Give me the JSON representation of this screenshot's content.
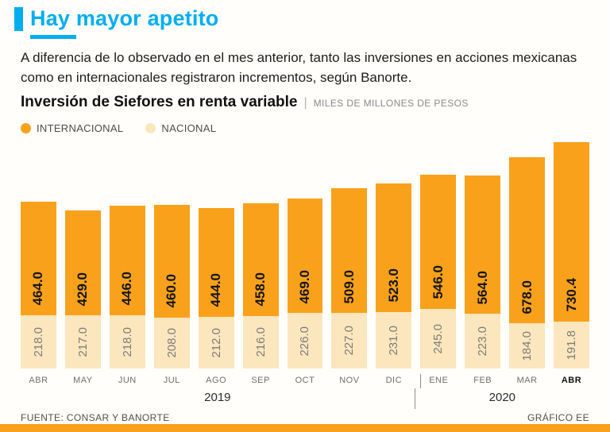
{
  "header": {
    "title": "Hay mayor apetito",
    "subtitle": "A diferencia de lo observado en el mes anterior, tanto las inversiones en acciones mexicanas como en internacionales registraron incrementos, según Banorte."
  },
  "chart": {
    "title": "Inversión de Siefores en renta variable",
    "separator": "|",
    "units": "MILES DE MILLONES DE PESOS",
    "legend": [
      {
        "label": "INTERNACIONAL",
        "color": "#F9A11B"
      },
      {
        "label": "NACIONAL",
        "color": "#FBE6BE"
      }
    ]
  },
  "colors": {
    "accent_cyan": "#00AEEF",
    "internacional_orange": "#F9A11B",
    "nacional_cream": "#FBE6BE",
    "bottom_strip_orange": "#F9A11B"
  },
  "chart_data": {
    "type": "bar",
    "stacked": true,
    "title": "Inversión de Siefores en renta variable",
    "ylabel": "MILES DE MILLONES DE PESOS",
    "grid": false,
    "legend_position": "top-left",
    "categories": [
      "ABR",
      "MAY",
      "JUN",
      "JUL",
      "AGO",
      "SEP",
      "OCT",
      "NOV",
      "DIC",
      "ENE",
      "FEB",
      "MAR",
      "ABR"
    ],
    "bold_category_index": 12,
    "divider_index": 9,
    "series": [
      {
        "name": "INTERNACIONAL",
        "color": "#F9A11B",
        "values": [
          464.0,
          429.0,
          446.0,
          460.0,
          444.0,
          458.0,
          469.0,
          509.0,
          523.0,
          546.0,
          564.0,
          678.0,
          730.4
        ],
        "labels": [
          "464.0",
          "429.0",
          "446.0",
          "460.0",
          "444.0",
          "458.0",
          "469.0",
          "509.0",
          "523.0",
          "546.0",
          "564.0",
          "678.0",
          "730.4"
        ]
      },
      {
        "name": "NACIONAL",
        "color": "#FBE6BE",
        "values": [
          218.0,
          217.0,
          218.0,
          208.0,
          212.0,
          216.0,
          226.0,
          227.0,
          231.0,
          245.0,
          223.0,
          184.0,
          191.8
        ],
        "labels": [
          "218.0",
          "217.0",
          "218.0",
          "208.0",
          "212.0",
          "216.0",
          "226.0",
          "227.0",
          "231.0",
          "245.0",
          "223.0",
          "184.0",
          "191.8"
        ]
      }
    ],
    "year_groups": [
      {
        "label": "2019",
        "span": 9
      },
      {
        "label": "2020",
        "span": 4
      }
    ]
  },
  "footer": {
    "source": "FUENTE: CONSAR Y BANORTE",
    "credit": "GRÁFICO EE"
  }
}
